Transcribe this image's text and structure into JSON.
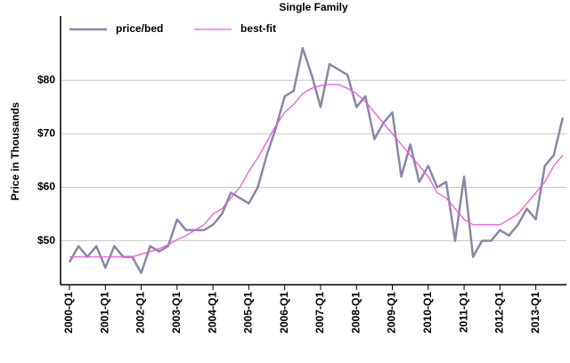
{
  "chart_data": {
    "type": "line",
    "title": "Single Family",
    "ylabel": "Price in Thousands",
    "categories": [
      "2000-Q1",
      null,
      null,
      null,
      "2001-Q1",
      null,
      null,
      null,
      "2002-Q1",
      null,
      null,
      null,
      "2003-Q1",
      null,
      null,
      null,
      "2004-Q1",
      null,
      null,
      null,
      "2005-Q1",
      null,
      null,
      null,
      "2006-Q1",
      null,
      null,
      null,
      "2007-Q1",
      null,
      null,
      null,
      "2008-Q1",
      null,
      null,
      null,
      "2009-Q1",
      null,
      null,
      null,
      "2010-Q1",
      null,
      null,
      null,
      "2011-Q1",
      null,
      null,
      null,
      "2012-Q1",
      null,
      null,
      null,
      "2013-Q1",
      null,
      null,
      null
    ],
    "series": [
      {
        "name": "price/bed",
        "color": "#8c86a8",
        "values": [
          46,
          49,
          47,
          49,
          45,
          49,
          47,
          47,
          44,
          49,
          48,
          49,
          54,
          52,
          52,
          52,
          53,
          55,
          59,
          58,
          57,
          60,
          66,
          71,
          77,
          78,
          86,
          81,
          75,
          83,
          82,
          81,
          75,
          77,
          69,
          72,
          74,
          62,
          68,
          61,
          64,
          60,
          61,
          50,
          62,
          47,
          50,
          50,
          52,
          51,
          53,
          56,
          54,
          64,
          66,
          73
        ]
      },
      {
        "name": "best-fit",
        "color": "#e75be0",
        "values": [
          47,
          47,
          47,
          47,
          47,
          47,
          47,
          47,
          47.5,
          48,
          48.5,
          49.3,
          50.2,
          51,
          52,
          53,
          55,
          56,
          58,
          60,
          63,
          65.5,
          68.5,
          71.5,
          74,
          75.5,
          77.5,
          78.5,
          79,
          79.2,
          79.2,
          78.5,
          77.5,
          76,
          74,
          72,
          70,
          68,
          66,
          64,
          62,
          59,
          58,
          56,
          54,
          53,
          53,
          53,
          53,
          54,
          55,
          57,
          59,
          61,
          64,
          66
        ]
      }
    ],
    "ylim": [
      41.8,
      92
    ],
    "yticks": [
      {
        "value": 50,
        "label": "$50"
      },
      {
        "value": 60,
        "label": "$60"
      },
      {
        "value": 70,
        "label": "$70"
      },
      {
        "value": 80,
        "label": "$80"
      }
    ],
    "grid": true,
    "legend": "top-left"
  }
}
